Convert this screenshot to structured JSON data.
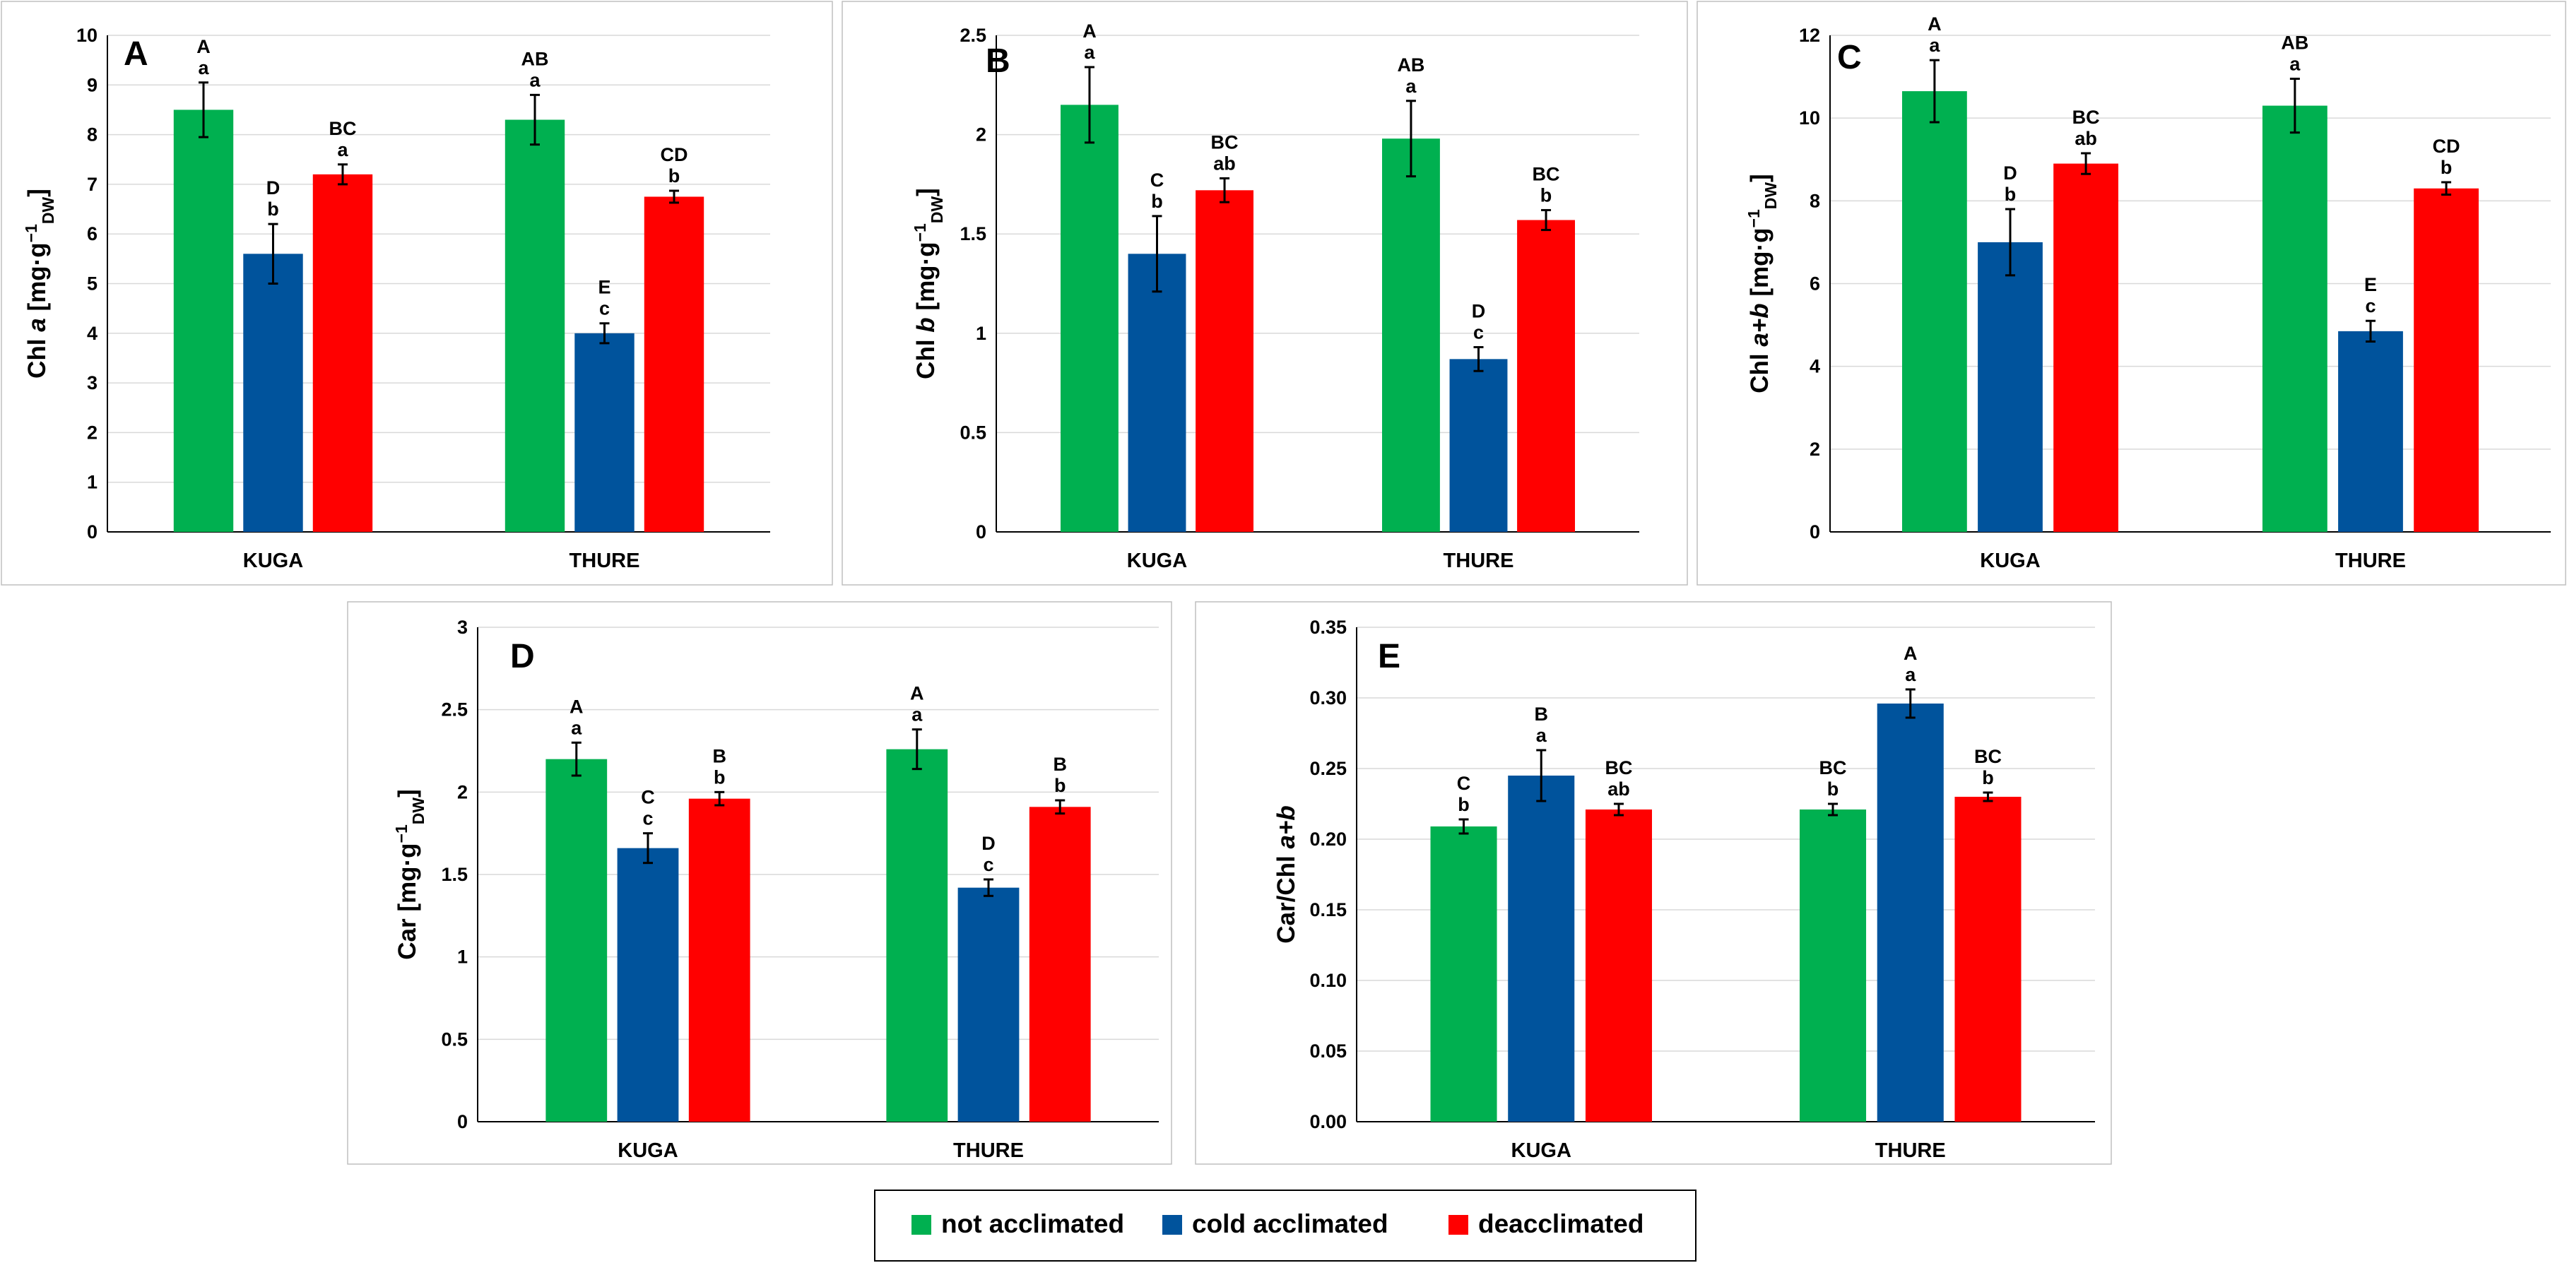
{
  "colors": {
    "not_acclimated": "#00B050",
    "cold_acclimated": "#00539C",
    "deacclimated": "#FF0000",
    "axis": "#000000",
    "grid": "#d9d9d9"
  },
  "legend": {
    "items": [
      {
        "label": "not acclimated",
        "color": "#00B050"
      },
      {
        "label": "cold acclimated",
        "color": "#00539C"
      },
      {
        "label": "deacclimated",
        "color": "#FF0000"
      }
    ]
  },
  "chart_data": [
    {
      "panel": "A",
      "type": "bar",
      "ylabel_parts": [
        {
          "t": "Chl "
        },
        {
          "t": "a",
          "italic": true
        },
        {
          "t": " [mg·g"
        },
        {
          "t": "−1",
          "sup": true
        },
        {
          "t": "DW",
          "sub": true
        },
        {
          "t": "]"
        }
      ],
      "ylim": [
        0,
        10
      ],
      "yticks": [
        "0",
        "1",
        "2",
        "3",
        "4",
        "5",
        "6",
        "7",
        "8",
        "9",
        "10"
      ],
      "categories": [
        "KUGA",
        "THURE"
      ],
      "series": [
        {
          "name": "not acclimated",
          "values": [
            8.5,
            8.3
          ],
          "errors": [
            0.55,
            0.5
          ],
          "upper": [
            "A",
            "AB"
          ],
          "lower": [
            "a",
            "a"
          ]
        },
        {
          "name": "cold acclimated",
          "values": [
            5.6,
            4.0
          ],
          "errors": [
            0.6,
            0.2
          ],
          "upper": [
            "D",
            "E"
          ],
          "lower": [
            "b",
            "c"
          ]
        },
        {
          "name": "deacclimated",
          "values": [
            7.2,
            6.75
          ],
          "errors": [
            0.2,
            0.12
          ],
          "upper": [
            "BC",
            "CD"
          ],
          "lower": [
            "a",
            "b"
          ]
        }
      ]
    },
    {
      "panel": "B",
      "type": "bar",
      "ylabel_parts": [
        {
          "t": "Chl "
        },
        {
          "t": "b",
          "italic": true
        },
        {
          "t": " [mg·g"
        },
        {
          "t": "−1",
          "sup": true
        },
        {
          "t": "DW",
          "sub": true
        },
        {
          "t": "]"
        }
      ],
      "ylim": [
        0,
        2.5
      ],
      "yticks": [
        "0",
        "0.5",
        "1",
        "1.5",
        "2",
        "2.5"
      ],
      "categories": [
        "KUGA",
        "THURE"
      ],
      "series": [
        {
          "name": "not acclimated",
          "values": [
            2.15,
            1.98
          ],
          "errors": [
            0.19,
            0.19
          ],
          "upper": [
            "A",
            "AB"
          ],
          "lower": [
            "a",
            "a"
          ]
        },
        {
          "name": "cold acclimated",
          "values": [
            1.4,
            0.87
          ],
          "errors": [
            0.19,
            0.06
          ],
          "upper": [
            "C",
            "D"
          ],
          "lower": [
            "b",
            "c"
          ]
        },
        {
          "name": "deacclimated",
          "values": [
            1.72,
            1.57
          ],
          "errors": [
            0.06,
            0.05
          ],
          "upper": [
            "BC",
            "BC"
          ],
          "lower": [
            "ab",
            "b"
          ]
        }
      ]
    },
    {
      "panel": "C",
      "type": "bar",
      "ylabel_parts": [
        {
          "t": "Chl "
        },
        {
          "t": "a+b",
          "italic": true
        },
        {
          "t": " [mg·g"
        },
        {
          "t": "−1",
          "sup": true
        },
        {
          "t": "DW",
          "sub": true
        },
        {
          "t": "]"
        }
      ],
      "ylim": [
        0,
        12
      ],
      "yticks": [
        "0",
        "2",
        "4",
        "6",
        "8",
        "10",
        "12"
      ],
      "categories": [
        "KUGA",
        "THURE"
      ],
      "series": [
        {
          "name": "not acclimated",
          "values": [
            10.65,
            10.3
          ],
          "errors": [
            0.75,
            0.65
          ],
          "upper": [
            "A",
            "AB"
          ],
          "lower": [
            "a",
            "a"
          ]
        },
        {
          "name": "cold acclimated",
          "values": [
            7.0,
            4.85
          ],
          "errors": [
            0.8,
            0.25
          ],
          "upper": [
            "D",
            "E"
          ],
          "lower": [
            "b",
            "c"
          ]
        },
        {
          "name": "deacclimated",
          "values": [
            8.9,
            8.3
          ],
          "errors": [
            0.25,
            0.15
          ],
          "upper": [
            "BC",
            "CD"
          ],
          "lower": [
            "ab",
            "b"
          ]
        }
      ]
    },
    {
      "panel": "D",
      "type": "bar",
      "ylabel_parts": [
        {
          "t": "Car [mg·g"
        },
        {
          "t": "−1",
          "sup": true
        },
        {
          "t": "DW",
          "sub": true
        },
        {
          "t": "]"
        }
      ],
      "ylim": [
        0,
        3
      ],
      "yticks": [
        "0",
        "0.5",
        "1",
        "1.5",
        "2",
        "2.5",
        "3"
      ],
      "categories": [
        "KUGA",
        "THURE"
      ],
      "series": [
        {
          "name": "not acclimated",
          "values": [
            2.2,
            2.26
          ],
          "errors": [
            0.1,
            0.12
          ],
          "upper": [
            "A",
            "A"
          ],
          "lower": [
            "a",
            "a"
          ]
        },
        {
          "name": "cold acclimated",
          "values": [
            1.66,
            1.42
          ],
          "errors": [
            0.09,
            0.05
          ],
          "upper": [
            "C",
            "D"
          ],
          "lower": [
            "c",
            "c"
          ]
        },
        {
          "name": "deacclimated",
          "values": [
            1.96,
            1.91
          ],
          "errors": [
            0.04,
            0.04
          ],
          "upper": [
            "B",
            "B"
          ],
          "lower": [
            "b",
            "b"
          ]
        }
      ]
    },
    {
      "panel": "E",
      "type": "bar",
      "ylabel_parts": [
        {
          "t": "Car/Chl "
        },
        {
          "t": "a+b",
          "italic": true
        }
      ],
      "ylim": [
        0,
        0.35
      ],
      "yticks": [
        "0.00",
        "0.05",
        "0.10",
        "0.15",
        "0.20",
        "0.25",
        "0.30",
        "0.35"
      ],
      "categories": [
        "KUGA",
        "THURE"
      ],
      "series": [
        {
          "name": "not acclimated",
          "values": [
            0.209,
            0.221
          ],
          "errors": [
            0.005,
            0.004
          ],
          "upper": [
            "C",
            "BC"
          ],
          "lower": [
            "b",
            "b"
          ]
        },
        {
          "name": "cold acclimated",
          "values": [
            0.245,
            0.296
          ],
          "errors": [
            0.018,
            0.01
          ],
          "upper": [
            "B",
            "A"
          ],
          "lower": [
            "a",
            "a"
          ]
        },
        {
          "name": "deacclimated",
          "values": [
            0.221,
            0.23
          ],
          "errors": [
            0.004,
            0.003
          ],
          "upper": [
            "BC",
            "BC"
          ],
          "lower": [
            "ab",
            "b"
          ]
        }
      ]
    }
  ]
}
